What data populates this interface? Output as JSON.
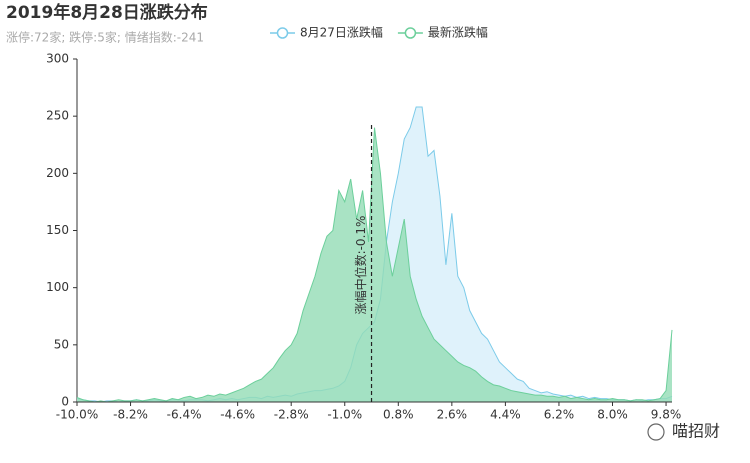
{
  "chart_data": {
    "type": "area",
    "title": "2019年8月28日涨跌分布",
    "subtitle": "涨停:72家; 跌停:5家; 情绪指数:-241",
    "watermark": "喵招财",
    "x": [
      -10,
      -9.8,
      -9.6,
      -9.4,
      -9.2,
      -9,
      -8.8,
      -8.6,
      -8.4,
      -8.2,
      -8,
      -7.8,
      -7.6,
      -7.4,
      -7.2,
      -7,
      -6.8,
      -6.6,
      -6.4,
      -6.2,
      -6,
      -5.8,
      -5.6,
      -5.4,
      -5.2,
      -5,
      -4.8,
      -4.6,
      -4.4,
      -4.2,
      -4,
      -3.8,
      -3.6,
      -3.4,
      -3.2,
      -3,
      -2.8,
      -2.6,
      -2.4,
      -2.2,
      -2,
      -1.8,
      -1.6,
      -1.4,
      -1.2,
      -1,
      -0.8,
      -0.6,
      -0.4,
      -0.2,
      0,
      0.2,
      0.4,
      0.6,
      0.8,
      1,
      1.2,
      1.4,
      1.6,
      1.8,
      2,
      2.2,
      2.4,
      2.6,
      2.8,
      3,
      3.2,
      3.4,
      3.6,
      3.8,
      4,
      4.2,
      4.4,
      4.6,
      4.8,
      5,
      5.2,
      5.4,
      5.6,
      5.8,
      6,
      6.2,
      6.4,
      6.6,
      6.8,
      7,
      7.2,
      7.4,
      7.6,
      7.8,
      8,
      8.2,
      8.4,
      8.6,
      8.8,
      9,
      9.2,
      9.4,
      9.6,
      9.8,
      10
    ],
    "series": [
      {
        "name": "8月27日涨跌幅",
        "color": "#7ccbe9",
        "fill": "#dff2fb",
        "values": [
          3,
          2,
          1,
          1,
          0,
          1,
          1,
          0,
          1,
          1,
          2,
          1,
          1,
          2,
          1,
          1,
          2,
          2,
          1,
          2,
          2,
          2,
          1,
          2,
          3,
          2,
          3,
          2,
          3,
          4,
          4,
          3,
          5,
          4,
          5,
          6,
          5,
          7,
          8,
          9,
          10,
          10,
          11,
          12,
          14,
          18,
          30,
          50,
          60,
          65,
          70,
          90,
          140,
          175,
          200,
          230,
          240,
          258,
          258,
          215,
          220,
          180,
          120,
          165,
          110,
          100,
          80,
          70,
          60,
          55,
          45,
          35,
          30,
          25,
          20,
          18,
          12,
          10,
          8,
          9,
          7,
          6,
          5,
          6,
          4,
          5,
          3,
          4,
          3,
          3,
          2,
          2,
          2,
          1,
          2,
          1,
          2,
          2,
          3,
          3,
          5
        ]
      },
      {
        "name": "最新涨跌幅",
        "color": "#6ccf9b",
        "fill": "#93dcb5",
        "values": [
          4,
          2,
          1,
          0,
          1,
          0,
          1,
          2,
          1,
          1,
          2,
          1,
          2,
          3,
          2,
          1,
          3,
          2,
          4,
          5,
          3,
          4,
          6,
          5,
          7,
          6,
          8,
          10,
          12,
          15,
          18,
          20,
          25,
          30,
          38,
          45,
          50,
          60,
          80,
          95,
          110,
          130,
          145,
          150,
          185,
          175,
          195,
          160,
          185,
          140,
          240,
          200,
          140,
          110,
          135,
          160,
          110,
          90,
          75,
          65,
          55,
          50,
          45,
          40,
          35,
          32,
          30,
          27,
          22,
          18,
          15,
          14,
          12,
          10,
          9,
          8,
          7,
          6,
          6,
          5,
          5,
          4,
          5,
          3,
          4,
          3,
          2,
          3,
          2,
          2,
          3,
          2,
          2,
          1,
          2,
          2,
          1,
          2,
          3,
          10,
          63
        ]
      }
    ],
    "median": {
      "value": -0.1,
      "label": "涨幅中位数:-0.1%"
    },
    "xlim": [
      -10,
      10
    ],
    "xticks": [
      {
        "value": -10,
        "label": "-10.0%"
      },
      {
        "value": -8.2,
        "label": "-8.2%"
      },
      {
        "value": -6.4,
        "label": "-6.4%"
      },
      {
        "value": -4.6,
        "label": "-4.6%"
      },
      {
        "value": -2.8,
        "label": "-2.8%"
      },
      {
        "value": -1,
        "label": "-1.0%"
      },
      {
        "value": 0.8,
        "label": "0.8%"
      },
      {
        "value": 2.6,
        "label": "2.6%"
      },
      {
        "value": 4.4,
        "label": "4.4%"
      },
      {
        "value": 6.2,
        "label": "6.2%"
      },
      {
        "value": 8,
        "label": "8.0%"
      },
      {
        "value": 9.8,
        "label": "9.8%"
      }
    ],
    "ylim": [
      0,
      300
    ],
    "yticks": [
      0,
      50,
      100,
      150,
      200,
      250,
      300
    ]
  }
}
